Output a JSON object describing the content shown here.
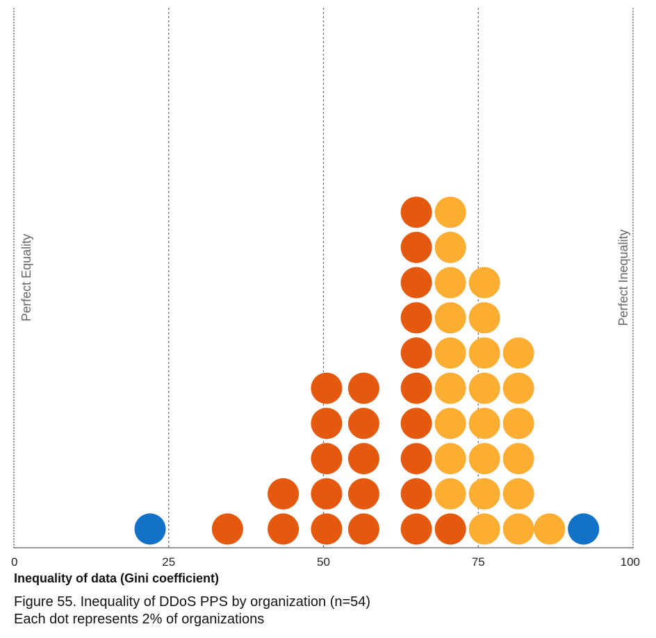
{
  "chart_data": {
    "type": "scatter",
    "subtype": "dot-plot",
    "xlabel": "Inequality of data (Gini coefficient)",
    "xlim": [
      0,
      100
    ],
    "xticks": [
      0,
      25,
      50,
      75,
      100
    ],
    "gridlines": "dotted vertical at 25, 50, 75",
    "left_annotation": "Perfect Equality",
    "right_annotation": "Perfect Inequality",
    "colors": {
      "blue": "#1272c8",
      "orange": "#e5590f",
      "yellow": "#fbae32",
      "axis": "#333333",
      "grid": "#666666",
      "annotation": "#666666"
    },
    "dot_columns": [
      {
        "x": 22.0,
        "stack": [
          "blue"
        ]
      },
      {
        "x": 34.5,
        "stack": [
          "orange"
        ]
      },
      {
        "x": 43.5,
        "stack": [
          "orange",
          "orange"
        ]
      },
      {
        "x": 50.5,
        "stack": [
          "orange",
          "orange",
          "orange",
          "orange",
          "orange"
        ]
      },
      {
        "x": 56.5,
        "stack": [
          "orange",
          "orange",
          "orange",
          "orange",
          "orange"
        ]
      },
      {
        "x": 65.0,
        "stack": [
          "orange",
          "orange",
          "orange",
          "orange",
          "orange",
          "orange",
          "orange",
          "orange",
          "orange",
          "orange"
        ]
      },
      {
        "x": 70.5,
        "stack": [
          "orange",
          "yellow",
          "yellow",
          "yellow",
          "yellow",
          "yellow",
          "yellow",
          "yellow",
          "yellow",
          "yellow"
        ]
      },
      {
        "x": 76.0,
        "stack": [
          "yellow",
          "yellow",
          "yellow",
          "yellow",
          "yellow",
          "yellow",
          "yellow",
          "yellow"
        ]
      },
      {
        "x": 81.5,
        "stack": [
          "yellow",
          "yellow",
          "yellow",
          "yellow",
          "yellow",
          "yellow"
        ]
      },
      {
        "x": 86.5,
        "stack": [
          "yellow"
        ]
      },
      {
        "x": 92.0,
        "stack": [
          "blue"
        ]
      }
    ]
  },
  "caption": {
    "line1": "Figure 55. Inequality of DDoS PPS by organization (n=54)",
    "line2": "Each dot represents 2% of organizations"
  }
}
